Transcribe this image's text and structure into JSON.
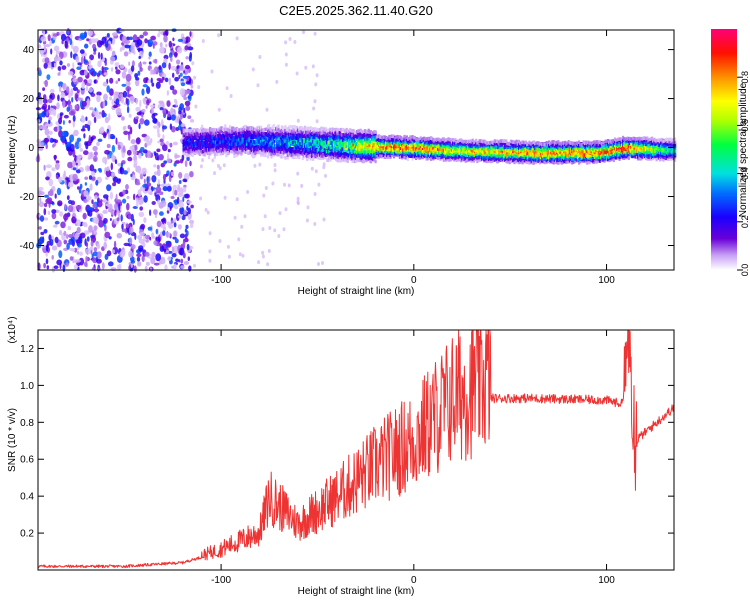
{
  "page_title": "C2E5.2025.362.11.40.G20",
  "chart_data": [
    {
      "type": "heatmap",
      "title": "C2E5.2025.362.11.40.G20",
      "xlabel": "Height of straight line (km)",
      "ylabel": "Frequency (Hz)",
      "xlim": [
        -195,
        135
      ],
      "ylim": [
        -50,
        48
      ],
      "xticks": [
        -100,
        0,
        100
      ],
      "xtick_labels": [
        "-100",
        "0",
        "100"
      ],
      "yticks": [
        -40,
        -20,
        0,
        20,
        40
      ],
      "ytick_labels": [
        "-40",
        "-20",
        "0",
        "20",
        "40"
      ],
      "colorbar": {
        "label": "Normalized spectral amplitude",
        "range": [
          0,
          1
        ],
        "ticks": [
          0.0,
          0.2,
          0.4,
          0.6,
          0.8
        ],
        "tick_labels": [
          "0.0",
          "0.2",
          "0.4",
          "0.6",
          "0.8"
        ]
      },
      "ridge": {
        "description_points_x": [
          -120,
          -90,
          -60,
          -40,
          -20,
          0,
          20,
          60,
          95,
          110,
          135
        ],
        "frequency_hz": [
          2,
          3,
          2,
          1,
          0.5,
          0,
          -1,
          -2,
          -2,
          0,
          -1
        ],
        "peak_amplitude": [
          0.25,
          0.35,
          0.45,
          0.6,
          0.85,
          0.95,
          0.75,
          0.85,
          0.9,
          0.95,
          0.45
        ]
      }
    },
    {
      "type": "line",
      "xlabel": "Height of straight line (km)",
      "ylabel": "SNR (10 * v/v)",
      "y_multiplier": "(x10⁴)",
      "xlim": [
        -195,
        135
      ],
      "ylim": [
        0,
        1.3
      ],
      "xticks": [
        -100,
        0,
        100
      ],
      "xtick_labels": [
        "-100",
        "0",
        "100"
      ],
      "yticks": [
        0.2,
        0.4,
        0.6,
        0.8,
        1.0,
        1.2
      ],
      "ytick_labels": [
        "0.2",
        "0.4",
        "0.6",
        "0.8",
        "1.0",
        "1.2"
      ],
      "series": [
        {
          "name": "SNR",
          "color": "#ee3333",
          "envelope_x": [
            -195,
            -150,
            -120,
            -100,
            -80,
            -75,
            -60,
            -40,
            -20,
            0,
            10,
            20,
            40,
            60,
            100,
            108,
            112,
            115,
            135
          ],
          "envelope_y": [
            0.02,
            0.02,
            0.04,
            0.1,
            0.18,
            0.35,
            0.22,
            0.35,
            0.5,
            0.62,
            0.72,
            0.82,
            0.93,
            0.93,
            0.92,
            0.9,
            1.2,
            0.7,
            0.88
          ]
        }
      ]
    }
  ]
}
